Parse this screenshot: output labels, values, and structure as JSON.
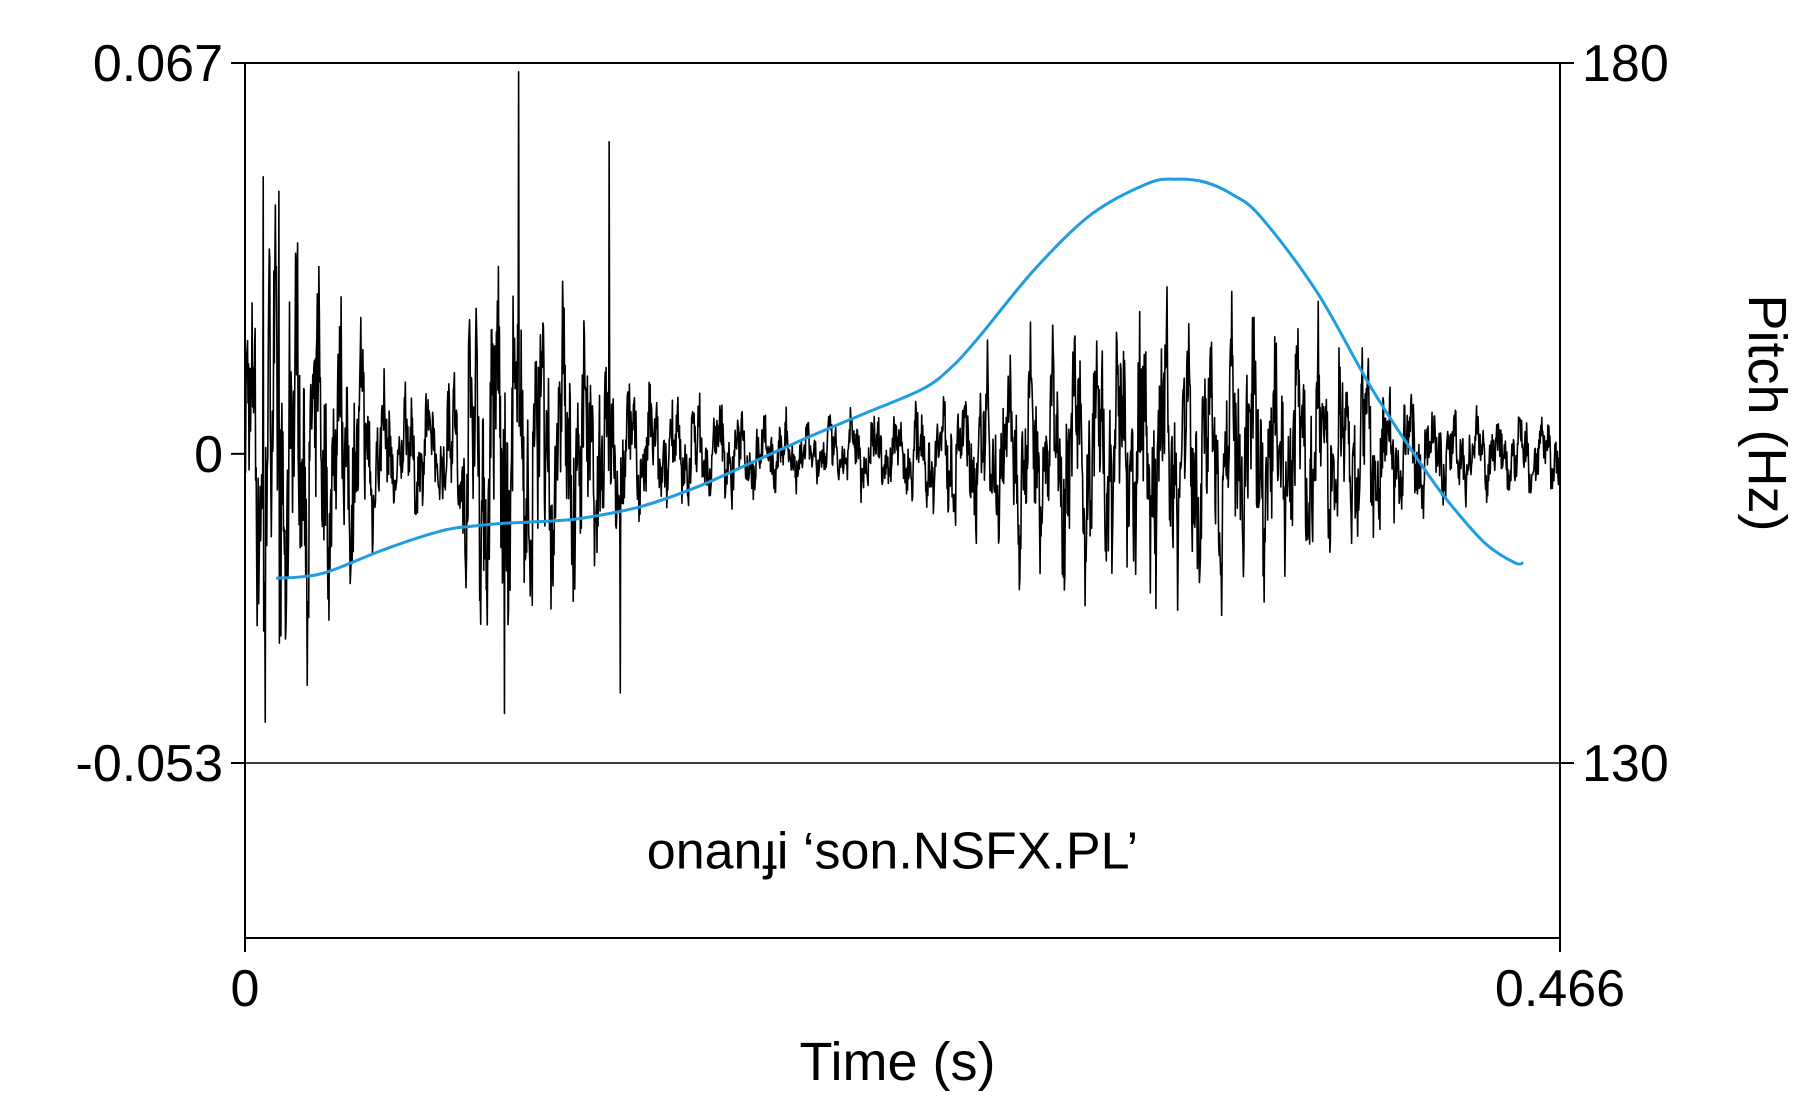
{
  "chart_data": {
    "type": "line",
    "xlabel": "Time (s)",
    "y2label": "Pitch (Hz)",
    "xlim": [
      0,
      0.466
    ],
    "x_ticks": [
      "0",
      "0.466"
    ],
    "ylim": [
      -0.053,
      0.067
    ],
    "y_ticks": [
      "0.067",
      "0",
      "-0.053"
    ],
    "y2lim": [
      130,
      180
    ],
    "y2_ticks": [
      "180",
      "130"
    ],
    "annotation": "onanɟi ‘son.NSFX.PL’",
    "series": [
      {
        "kind": "waveform",
        "color": "#000000",
        "envelope": {
          "t": [
            0,
            0.01,
            0.02,
            0.03,
            0.04,
            0.05,
            0.07,
            0.08,
            0.085,
            0.09,
            0.1,
            0.11,
            0.12,
            0.13,
            0.14,
            0.16,
            0.2,
            0.24,
            0.28,
            0.3,
            0.32,
            0.34,
            0.36,
            0.38,
            0.4,
            0.42,
            0.44,
            0.466
          ],
          "amplitude": [
            0.028,
            0.043,
            0.035,
            0.026,
            0.023,
            0.012,
            0.011,
            0.03,
            0.034,
            0.035,
            0.034,
            0.03,
            0.025,
            0.021,
            0.012,
            0.01,
            0.006,
            0.009,
            0.02,
            0.024,
            0.025,
            0.024,
            0.024,
            0.022,
            0.016,
            0.01,
            0.008,
            0.007
          ]
        },
        "spikes": [
          {
            "t": 0.097,
            "value": 0.0655
          },
          {
            "t": 0.092,
            "value": -0.0445
          },
          {
            "t": 0.129,
            "value": -0.053
          },
          {
            "t": 0.129,
            "value": 0.0535
          },
          {
            "t": 0.133,
            "value": -0.041
          },
          {
            "t": 0.0065,
            "value": 0.0475
          },
          {
            "t": 0.0072,
            "value": -0.046
          },
          {
            "t": 0.012,
            "value": 0.045
          }
        ]
      },
      {
        "kind": "pitch",
        "name": "",
        "color": "#1f9de0",
        "x": [
          0.011,
          0.02,
          0.03,
          0.05,
          0.07,
          0.08,
          0.09,
          0.1,
          0.11,
          0.12,
          0.14,
          0.16,
          0.18,
          0.2,
          0.22,
          0.24,
          0.25,
          0.26,
          0.28,
          0.3,
          0.32,
          0.33,
          0.34,
          0.35,
          0.36,
          0.38,
          0.4,
          0.42,
          0.43,
          0.44,
          0.45,
          0.453
        ],
        "y": [
          143.2,
          143.3,
          143.7,
          145.3,
          146.6,
          146.9,
          147.1,
          147.2,
          147.3,
          147.5,
          148.3,
          149.7,
          151.5,
          153.3,
          155.0,
          156.7,
          158.2,
          160.4,
          165.3,
          169.2,
          171.4,
          171.7,
          171.5,
          170.6,
          169.0,
          163.6,
          156.5,
          150.4,
          147.8,
          145.6,
          144.3,
          144.3
        ]
      }
    ]
  }
}
